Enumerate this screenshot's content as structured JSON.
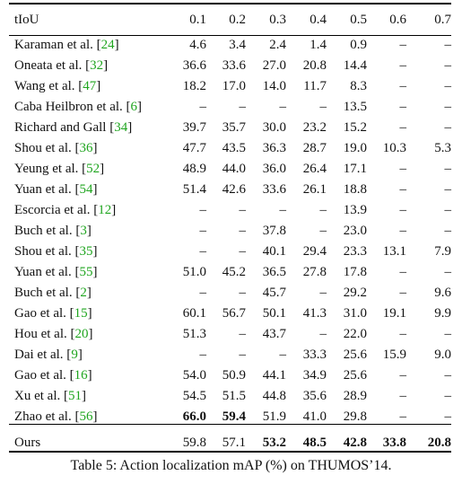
{
  "table": {
    "header": [
      "tIoU",
      "0.1",
      "0.2",
      "0.3",
      "0.4",
      "0.5",
      "0.6",
      "0.7"
    ],
    "rows": [
      {
        "author": "Karaman et al. [",
        "ref": "24",
        "close": "]",
        "values": [
          "4.6",
          "3.4",
          "2.4",
          "1.4",
          "0.9",
          "–",
          "–"
        ]
      },
      {
        "author": "Oneata et al. [",
        "ref": "32",
        "close": "]",
        "values": [
          "36.6",
          "33.6",
          "27.0",
          "20.8",
          "14.4",
          "–",
          "–"
        ]
      },
      {
        "author": "Wang et al. [",
        "ref": "47",
        "close": "]",
        "values": [
          "18.2",
          "17.0",
          "14.0",
          "11.7",
          "8.3",
          "–",
          "–"
        ]
      },
      {
        "author": "Caba Heilbron et al. [",
        "ref": "6",
        "close": "]",
        "values": [
          "–",
          "–",
          "–",
          "–",
          "13.5",
          "–",
          "–"
        ]
      },
      {
        "author": "Richard and Gall [",
        "ref": "34",
        "close": "]",
        "values": [
          "39.7",
          "35.7",
          "30.0",
          "23.2",
          "15.2",
          "–",
          "–"
        ]
      },
      {
        "author": "Shou et al. [",
        "ref": "36",
        "close": "]",
        "values": [
          "47.7",
          "43.5",
          "36.3",
          "28.7",
          "19.0",
          "10.3",
          "5.3"
        ]
      },
      {
        "author": "Yeung et al. [",
        "ref": "52",
        "close": "]",
        "values": [
          "48.9",
          "44.0",
          "36.0",
          "26.4",
          "17.1",
          "–",
          "–"
        ]
      },
      {
        "author": "Yuan et al. [",
        "ref": "54",
        "close": "]",
        "values": [
          "51.4",
          "42.6",
          "33.6",
          "26.1",
          "18.8",
          "–",
          "–"
        ]
      },
      {
        "author": "Escorcia et al. [",
        "ref": "12",
        "close": "]",
        "values": [
          "–",
          "–",
          "–",
          "–",
          "13.9",
          "–",
          "–"
        ]
      },
      {
        "author": "Buch et al. [",
        "ref": "3",
        "close": "]",
        "values": [
          "–",
          "–",
          "37.8",
          "–",
          "23.0",
          "–",
          "–"
        ]
      },
      {
        "author": "Shou et al. [",
        "ref": "35",
        "close": "]",
        "values": [
          "–",
          "–",
          "40.1",
          "29.4",
          "23.3",
          "13.1",
          "7.9"
        ]
      },
      {
        "author": "Yuan et al. [",
        "ref": "55",
        "close": "]",
        "values": [
          "51.0",
          "45.2",
          "36.5",
          "27.8",
          "17.8",
          "–",
          "–"
        ]
      },
      {
        "author": "Buch et al. [",
        "ref": "2",
        "close": "]",
        "values": [
          "–",
          "–",
          "45.7",
          "–",
          "29.2",
          "–",
          "9.6"
        ]
      },
      {
        "author": "Gao et al. [",
        "ref": "15",
        "close": "]",
        "values": [
          "60.1",
          "56.7",
          "50.1",
          "41.3",
          "31.0",
          "19.1",
          "9.9"
        ]
      },
      {
        "author": "Hou et al. [",
        "ref": "20",
        "close": "]",
        "values": [
          "51.3",
          "–",
          "43.7",
          "–",
          "22.0",
          "–",
          "–"
        ]
      },
      {
        "author": "Dai et al. [",
        "ref": "9",
        "close": "]",
        "values": [
          "–",
          "–",
          "–",
          "33.3",
          "25.6",
          "15.9",
          "9.0"
        ]
      },
      {
        "author": "Gao et al. [",
        "ref": "16",
        "close": "]",
        "values": [
          "54.0",
          "50.9",
          "44.1",
          "34.9",
          "25.6",
          "–",
          "–"
        ]
      },
      {
        "author": "Xu et al. [",
        "ref": "51",
        "close": "]",
        "values": [
          "54.5",
          "51.5",
          "44.8",
          "35.6",
          "28.9",
          "–",
          "–"
        ]
      },
      {
        "author": "Zhao et al. [",
        "ref": "56",
        "close": "]",
        "values": [
          "66.0",
          "59.4",
          "51.9",
          "41.0",
          "29.8",
          "–",
          "–"
        ]
      }
    ],
    "final_row": {
      "author": "Ours",
      "values": [
        "59.8",
        "57.1",
        "53.2",
        "48.5",
        "42.8",
        "33.8",
        "20.8"
      ]
    }
  },
  "caption": "Table 5: Action localization mAP (%) on THUMOS’14.",
  "colors": {
    "citation": "#1fa51f",
    "text": "#111111",
    "rule": "#000000"
  }
}
